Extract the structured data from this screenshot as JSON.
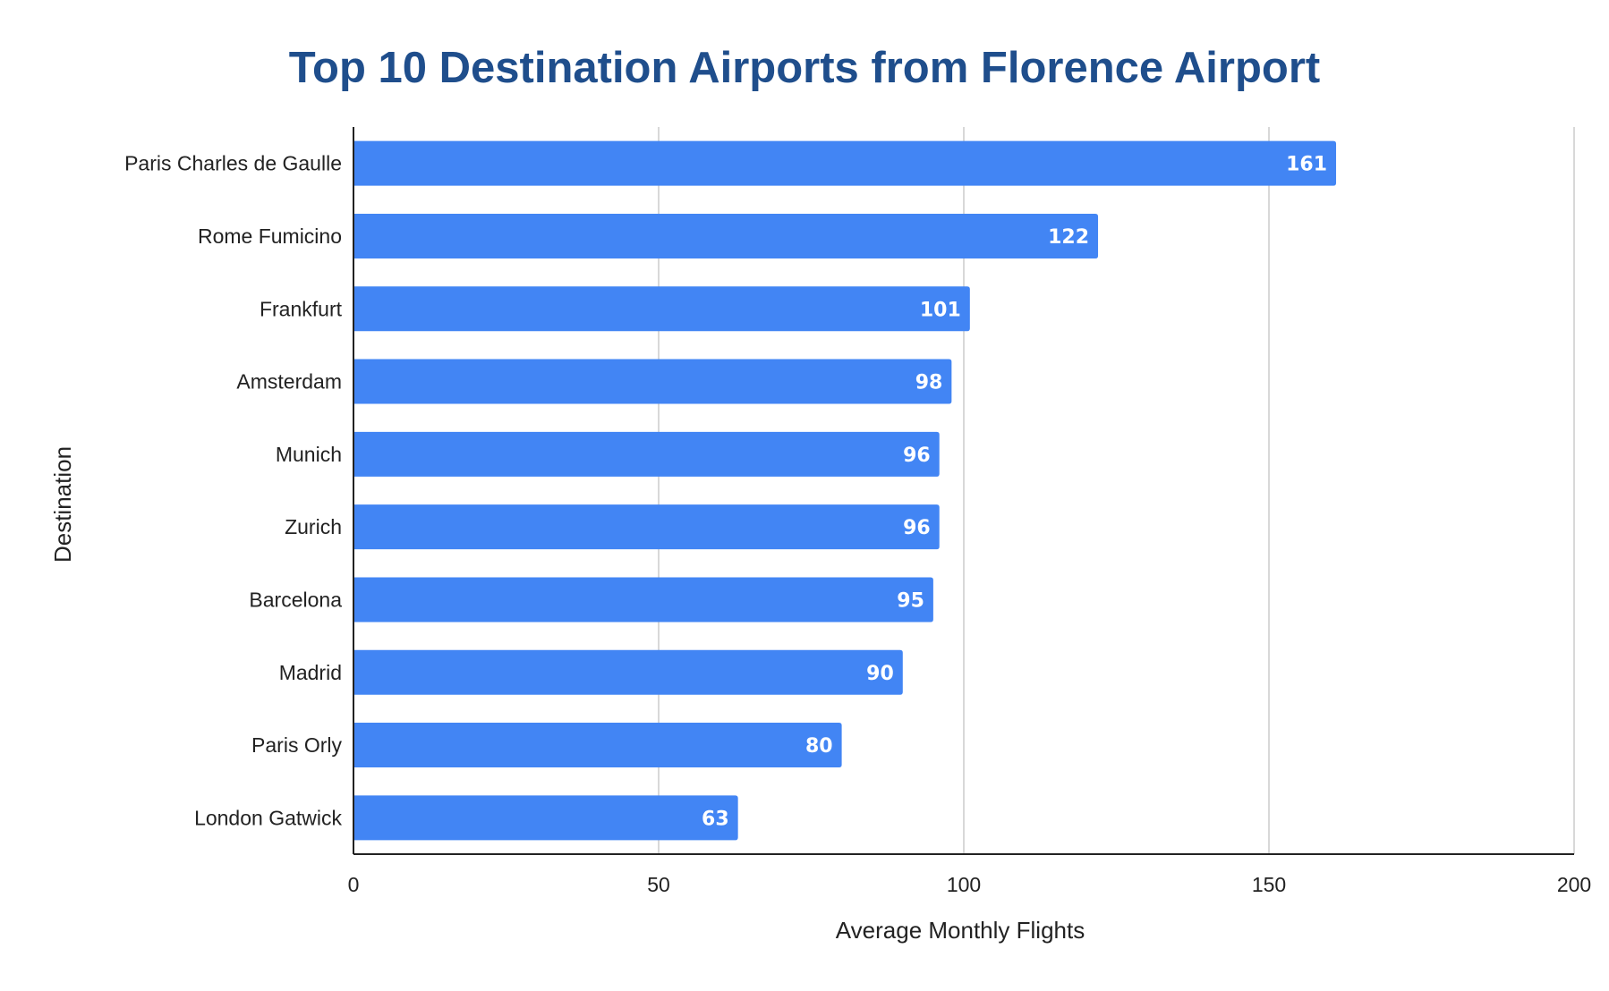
{
  "chart_data": {
    "type": "bar",
    "orientation": "horizontal",
    "title": "Top 10 Destination Airports from Florence Airport",
    "xlabel": "Average Monthly Flights",
    "ylabel": "Destination",
    "categories": [
      "Paris Charles de Gaulle",
      "Rome Fumicino",
      "Frankfurt",
      "Amsterdam",
      "Munich",
      "Zurich",
      "Barcelona",
      "Madrid",
      "Paris Orly",
      "London Gatwick"
    ],
    "values": [
      161,
      122,
      101,
      98,
      96,
      96,
      95,
      90,
      80,
      63
    ],
    "xlim": [
      0,
      200
    ],
    "xticks": [
      0,
      50,
      100,
      150,
      200
    ],
    "grid": true,
    "data_labels": true,
    "legend": "none",
    "colors": {
      "bar": "#4285f4",
      "title": "#1f4e8c",
      "grid": "#cccccc",
      "axis": "#222222",
      "value_label": "#ffffff"
    }
  }
}
